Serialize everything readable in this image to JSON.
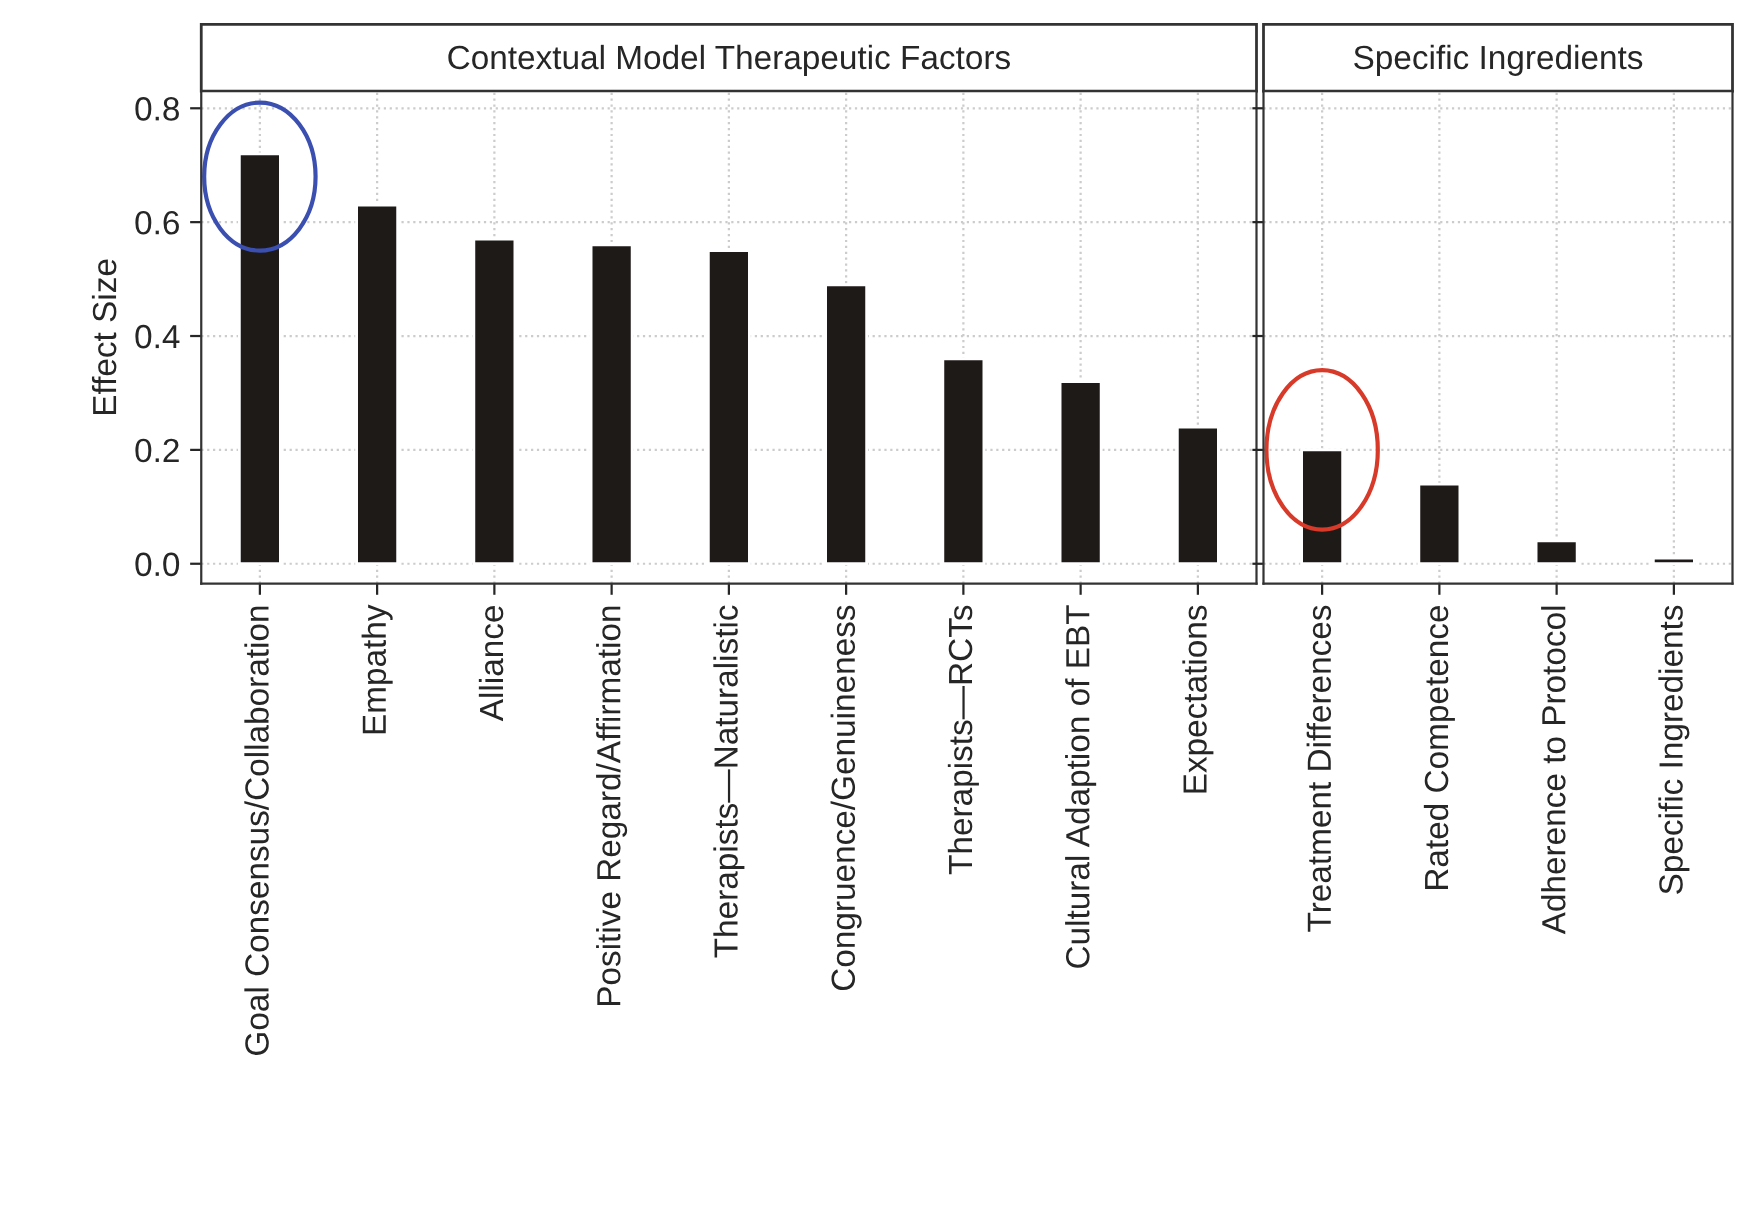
{
  "chart_data": [
    {
      "type": "bar",
      "title": "Contextual Model Therapeutic Factors",
      "ylabel": "Effect Size",
      "categories": [
        "Goal Consensus/Collaboration",
        "Empathy",
        "Alliance",
        "Positive Regard/Affirmation",
        "Therapists—Naturalistic",
        "Congruence/Genuineness",
        "Therapists—RCTs",
        "Cultural Adaption of EBT",
        "Expectations"
      ],
      "values": [
        0.72,
        0.63,
        0.57,
        0.56,
        0.55,
        0.49,
        0.36,
        0.32,
        0.24
      ],
      "color": "#1e1a18",
      "ylim": [
        -0.035,
        0.83
      ],
      "yticks": [
        {
          "value": 0,
          "label": "0.0"
        },
        0.2,
        0.4,
        0.6,
        0.8
      ],
      "grid": true
    },
    {
      "type": "bar",
      "title": "Specific Ingredients",
      "categories": [
        "Treatment Differences",
        "Rated Competence",
        "Adherence to Protocol",
        "Specific Ingredients"
      ],
      "values": [
        0.2,
        0.14,
        0.04,
        0.01
      ],
      "color": "#1e1a18",
      "ylim": [
        -0.035,
        0.83
      ],
      "yticks": [
        {
          "value": 0,
          "label": null
        },
        {
          "value": 0.2,
          "label": null
        },
        {
          "value": 0.4,
          "label": null
        },
        {
          "value": 0.6,
          "label": null
        },
        {
          "value": 0.8,
          "label": null
        }
      ],
      "grid": true,
      "tick_labels": "x"
    }
  ]
}
